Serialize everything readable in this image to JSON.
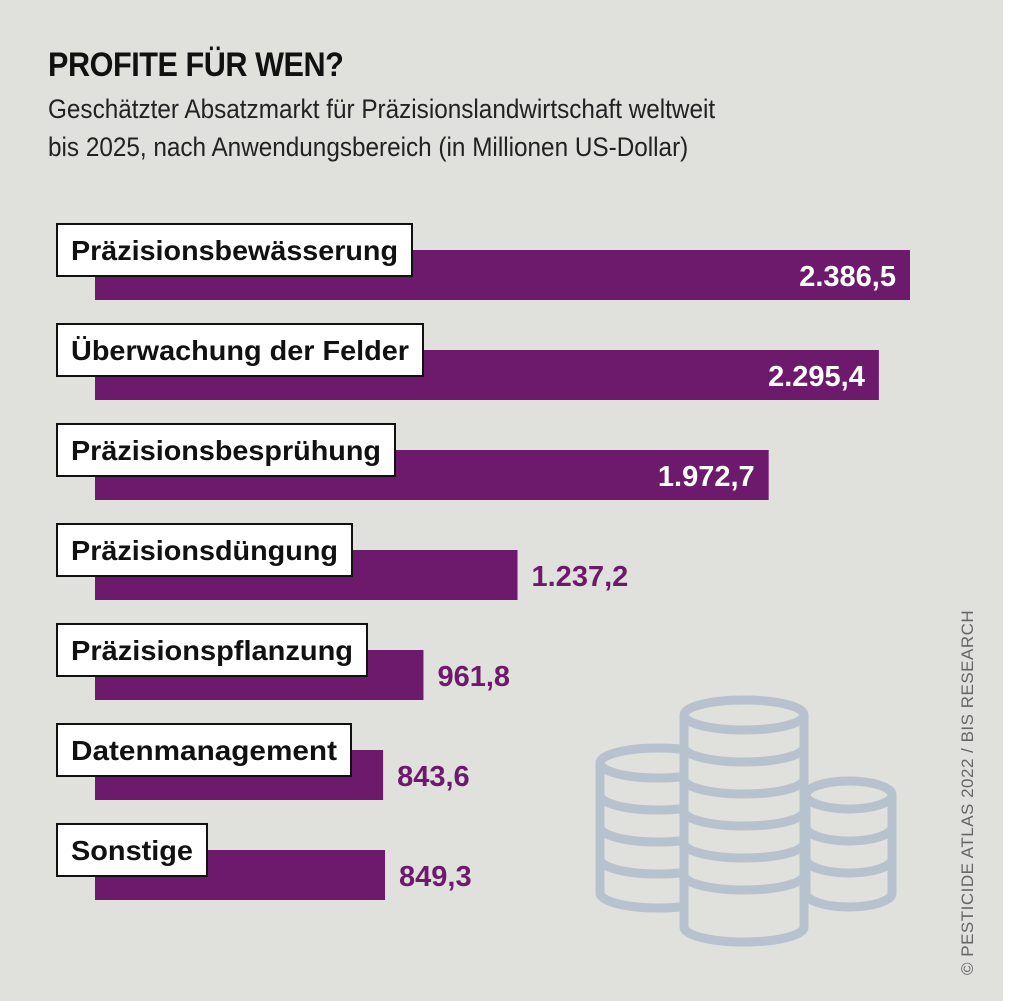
{
  "title": "PROFITE FÜR WEN?",
  "subtitle_line1": "Geschätzter Absatzmarkt für Präzisionslandwirtschaft weltweit",
  "subtitle_line2": "bis 2025, nach Anwendungsbereich (in Millionen US-Dollar)",
  "credit": "© PESTICIDE ATLAS 2022 / BIS RESEARCH",
  "colors": {
    "bar": "#6e1a6c",
    "background": "#e0e0dc",
    "coin_icon": "#b6c2cd"
  },
  "icon": "coin-stacks-icon",
  "chart_data": {
    "type": "bar",
    "orientation": "horizontal",
    "categories": [
      "Präzisionsbewässerung",
      "Überwachung der Felder",
      "Präzisionsbesprühung",
      "Präzisionsdüngung",
      "Präzisionspflanzung",
      "Datenmanagement",
      "Sonstige"
    ],
    "values": [
      2386.5,
      2295.4,
      1972.7,
      1237.2,
      961.8,
      843.6,
      849.3
    ],
    "value_labels": [
      "2.386,5",
      "2.295,4",
      "1.972,7",
      "1.237,2",
      "961,8",
      "843,6",
      "849,3"
    ],
    "title": "PROFITE FÜR WEN?",
    "unit": "Millionen US-Dollar"
  }
}
